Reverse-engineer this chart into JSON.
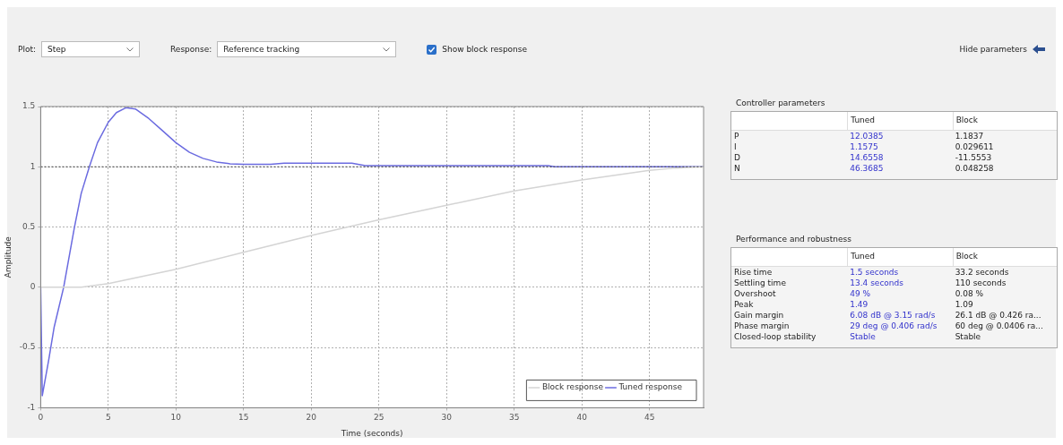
{
  "chart_data": [
    {
      "type": "other",
      "annotations": [
        "Plot:",
        "Step",
        "Response:",
        "Reference tracking",
        "Show block response",
        "Hide parameters"
      ]
    },
    {
      "type": "line",
      "xlabel": "Time (seconds)",
      "ylabel": "Amplitude",
      "xlim": [
        0,
        49
      ],
      "ylim": [
        -1,
        1.5
      ],
      "xticks": [
        0,
        5,
        10,
        15,
        20,
        25,
        30,
        35,
        40,
        45
      ],
      "yticks": [
        -1,
        -0.5,
        0,
        0.5,
        1,
        1.5
      ],
      "grid": true,
      "legend": "bottom right",
      "marker": "none",
      "line_style": "solid",
      "ref_lines": [
        {
          "axis": "y",
          "value": 1,
          "color": "#444444",
          "line_style": "dotted"
        }
      ],
      "series": [
        {
          "name": "Block response",
          "color": "#d4d4d4",
          "x": [
            0,
            3,
            5,
            10,
            15,
            20,
            25,
            30,
            35,
            40,
            45,
            47,
            49
          ],
          "values": [
            0,
            0,
            0.03,
            0.15,
            0.29,
            0.43,
            0.56,
            0.68,
            0.8,
            0.89,
            0.97,
            0.99,
            1.0
          ]
        },
        {
          "name": "Tuned response",
          "color": "#6b6be0",
          "x": [
            0,
            0.12,
            0.6,
            1.0,
            1.7,
            2.5,
            3.0,
            3.6,
            4.2,
            5,
            5.6,
            6.3,
            7,
            8,
            9,
            10,
            11,
            12,
            13,
            14,
            15,
            17,
            18,
            23,
            24,
            37.5,
            38,
            49
          ],
          "values": [
            0,
            -0.9,
            -0.6,
            -0.33,
            0,
            0.5,
            0.78,
            1.0,
            1.2,
            1.37,
            1.45,
            1.49,
            1.48,
            1.4,
            1.3,
            1.2,
            1.12,
            1.07,
            1.04,
            1.025,
            1.02,
            1.02,
            1.03,
            1.03,
            1.01,
            1.01,
            1.0,
            1.0
          ]
        }
      ]
    },
    {
      "type": "other",
      "title": "Controller parameters",
      "categories": [
        null,
        "Tuned",
        "Block"
      ],
      "annotations": [
        "P",
        "12.0385",
        "1.1837",
        "I",
        "1.1575",
        "0.029611",
        "D",
        "14.6558",
        "-11.5553",
        "N",
        "46.3685",
        "0.048258"
      ]
    },
    {
      "type": "other",
      "title": "Performance and robustness",
      "categories": [
        null,
        "Tuned",
        "Block"
      ],
      "annotations": [
        "Rise time",
        "1.5 seconds",
        "33.2 seconds",
        "Settling time",
        "13.4 seconds",
        "110 seconds",
        "Overshoot",
        "49 %",
        "0.08 %",
        "Peak",
        "1.49",
        "1.09",
        "Gain margin",
        "6.08 dB @ 3.15 rad/s",
        "26.1 dB @ 0.426 ra...",
        "Phase margin",
        "29 deg @ 0.406 rad/s",
        "60 deg @ 0.0406 ra...",
        "Closed-loop stability",
        "Stable",
        "Stable"
      ]
    }
  ]
}
